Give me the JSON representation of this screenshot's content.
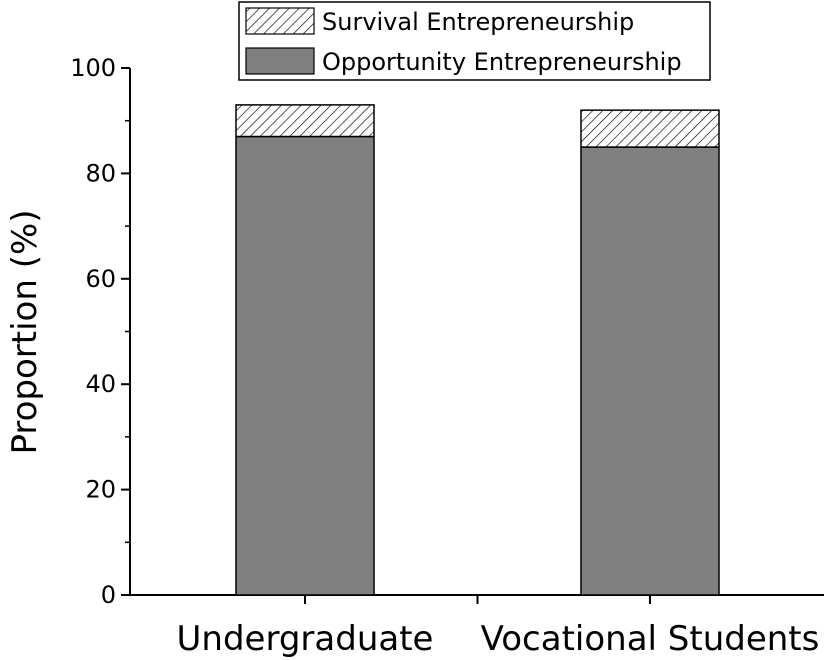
{
  "chart_data": {
    "type": "bar",
    "stacked": true,
    "categories": [
      "Undergraduate",
      "Vocational Students"
    ],
    "series": [
      {
        "name": "Opportunity Entrepreneurship",
        "values": [
          87,
          85
        ],
        "color": "#808080",
        "pattern": "solid"
      },
      {
        "name": "Survival Entrepreneurship",
        "values": [
          6,
          7
        ],
        "color": "#ffffff",
        "pattern": "diagonal-hatch"
      }
    ],
    "title": "",
    "xlabel": "",
    "ylabel": "Proportion (%)",
    "ylim": [
      0,
      100
    ],
    "yticks": [
      "0",
      "20",
      "40",
      "60",
      "80",
      "100"
    ],
    "grid": false,
    "legend_position": "top-center",
    "legend_order": [
      "Survival Entrepreneurship",
      "Opportunity Entrepreneurship"
    ]
  }
}
